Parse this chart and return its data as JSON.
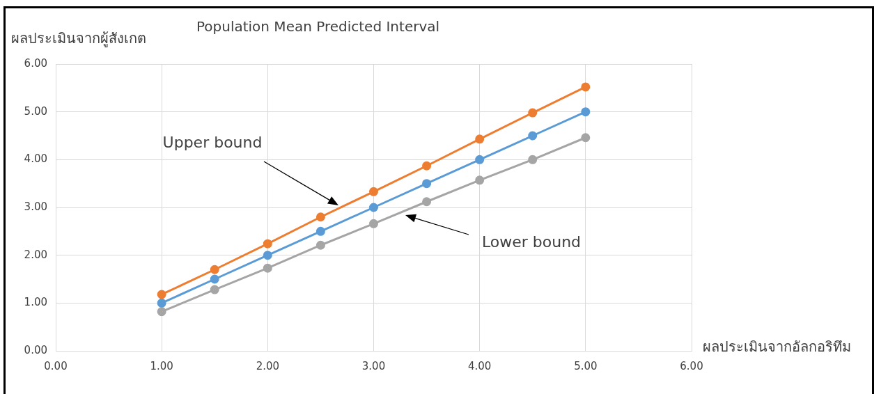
{
  "chart_data": {
    "type": "line",
    "title": "Population Mean Predicted Interval",
    "xlabel": "ผลประเมินจากอัลกอริทึม",
    "ylabel": "ผลประเมินจากผู้สังเกต",
    "x": [
      1,
      1.5,
      2,
      2.5,
      3,
      3.5,
      4,
      4.5,
      5
    ],
    "series": [
      {
        "color": "#ed7d31",
        "values": [
          1.18,
          1.7,
          2.24,
          2.8,
          3.33,
          3.87,
          4.43,
          4.98,
          5.52
        ]
      },
      {
        "color": "#5b9bd5",
        "values": [
          1,
          1.5,
          2,
          2.5,
          3,
          3.5,
          4,
          4.5,
          5
        ]
      },
      {
        "color": "#a5a5a5",
        "values": [
          0.82,
          1.28,
          1.73,
          2.21,
          2.66,
          3.12,
          3.57,
          4.0,
          4.46
        ]
      }
    ],
    "annotations": [
      "Upper bound",
      "Lower bound"
    ],
    "xlim": [
      0,
      6
    ],
    "xticks": [
      {
        "value": 0,
        "label": "0.00"
      },
      {
        "value": 1,
        "label": "1.00"
      },
      {
        "value": 2,
        "label": "2.00"
      },
      {
        "value": 3,
        "label": "3.00"
      },
      {
        "value": 4,
        "label": "4.00"
      },
      {
        "value": 5,
        "label": "5.00"
      },
      {
        "value": 6,
        "label": "6.00"
      }
    ],
    "ylim": [
      0,
      6
    ],
    "yticks": [
      {
        "value": 0,
        "label": "0.00"
      },
      {
        "value": 1,
        "label": "1.00"
      },
      {
        "value": 2,
        "label": "2.00"
      },
      {
        "value": 3,
        "label": "3.00"
      },
      {
        "value": 4,
        "label": "4.00"
      },
      {
        "value": 5,
        "label": "5.00"
      },
      {
        "value": 6,
        "label": "6.00"
      }
    ],
    "grid": true,
    "marker": "circle",
    "line_style": "solid",
    "legend": false
  }
}
